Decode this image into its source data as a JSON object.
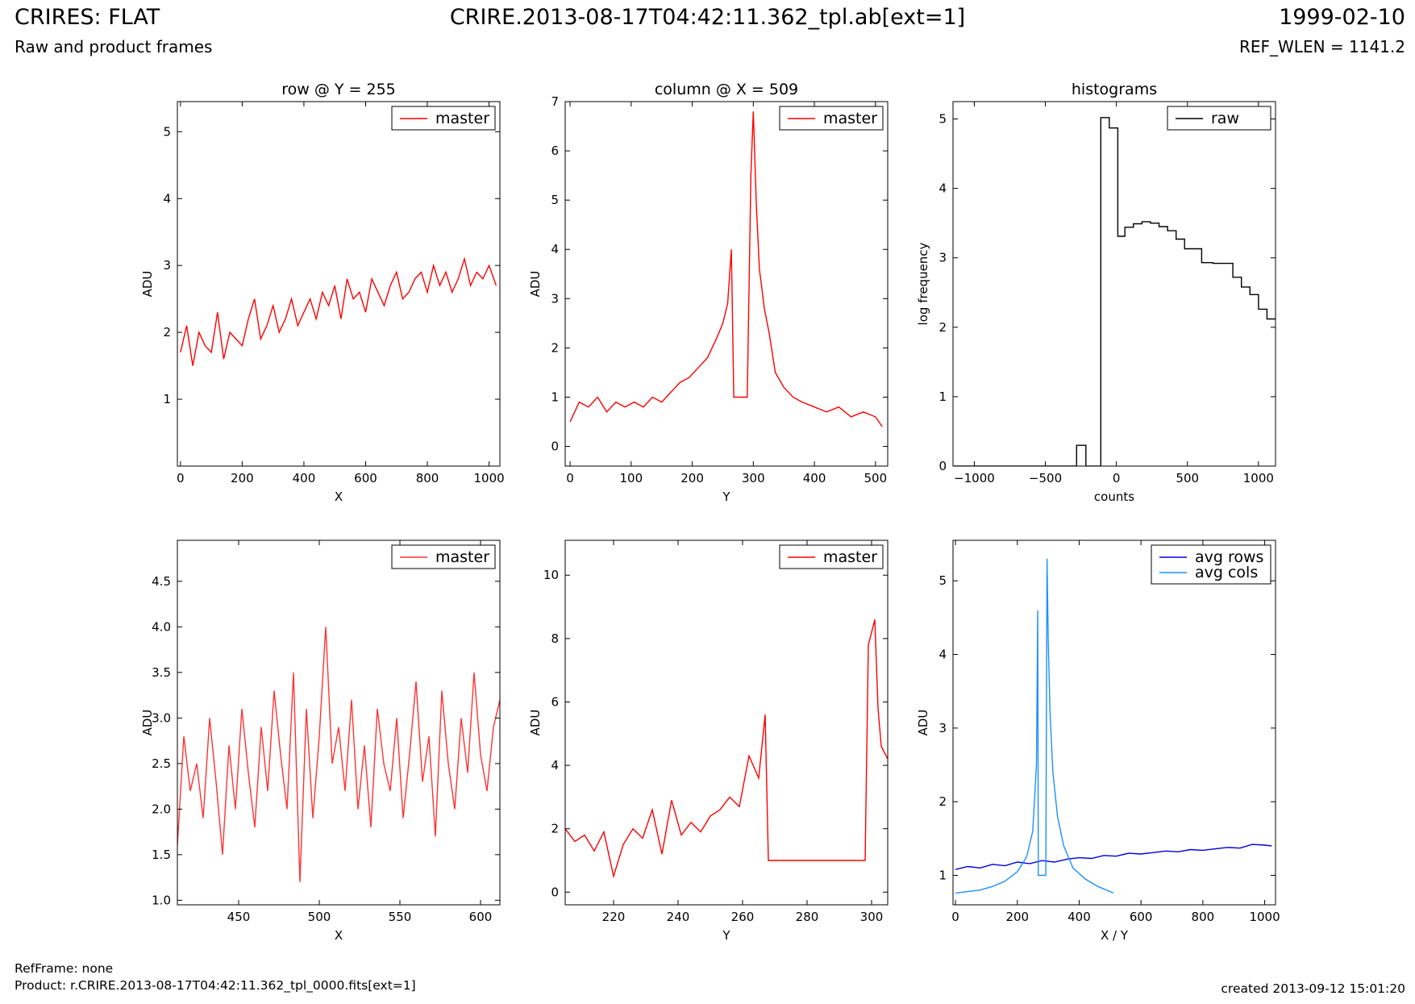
{
  "header": {
    "title": "CRIRES: FLAT",
    "subtitle": "Raw and product frames",
    "file": "CRIRE.2013-08-17T04:42:11.362_tpl.ab[ext=1]",
    "date": "1999-02-10",
    "ref_wlen": "REF_WLEN = 1141.2"
  },
  "footer": {
    "ref_frame": "RefFrame: none",
    "product": "Product: r.CRIRE.2013-08-17T04:42:11.362_tpl_0000.fits[ext=1]",
    "created": "created 2013-09-12 15:01:20"
  },
  "chart_data": [
    {
      "type": "line",
      "title": "row @ Y = 255",
      "xlabel": "X",
      "ylabel": "ADU",
      "xlim": [
        -10,
        1035
      ],
      "ylim": [
        0.0,
        5.45
      ],
      "xticks": [
        0,
        200,
        400,
        600,
        800,
        1000
      ],
      "yticks": [
        1,
        2,
        3,
        4,
        5
      ],
      "legend": "top-right",
      "series": [
        {
          "name": "master",
          "color": "#ff0000",
          "x": [
            0,
            20,
            40,
            60,
            80,
            100,
            120,
            140,
            160,
            180,
            200,
            220,
            240,
            260,
            280,
            300,
            320,
            340,
            360,
            380,
            400,
            420,
            440,
            460,
            480,
            500,
            520,
            540,
            560,
            580,
            600,
            620,
            640,
            660,
            680,
            700,
            720,
            740,
            760,
            780,
            800,
            820,
            840,
            860,
            880,
            900,
            920,
            940,
            960,
            980,
            1000,
            1023
          ],
          "y": [
            1.7,
            2.1,
            1.5,
            2.0,
            1.8,
            1.7,
            2.3,
            1.6,
            2.0,
            1.9,
            1.8,
            2.2,
            2.5,
            1.9,
            2.1,
            2.4,
            2.0,
            2.2,
            2.5,
            2.1,
            2.3,
            2.5,
            2.2,
            2.6,
            2.4,
            2.7,
            2.2,
            2.8,
            2.5,
            2.6,
            2.3,
            2.8,
            2.6,
            2.4,
            2.7,
            2.9,
            2.5,
            2.6,
            2.8,
            2.9,
            2.6,
            3.0,
            2.7,
            2.9,
            2.6,
            2.8,
            3.1,
            2.7,
            2.9,
            2.8,
            3.0,
            2.7
          ]
        }
      ]
    },
    {
      "type": "line",
      "title": "column @ X = 509",
      "xlabel": "Y",
      "ylabel": "ADU",
      "xlim": [
        -8,
        520
      ],
      "ylim": [
        -0.4,
        7.0
      ],
      "xticks": [
        0,
        100,
        200,
        300,
        400,
        500
      ],
      "yticks": [
        0,
        1,
        2,
        3,
        4,
        5,
        6,
        7
      ],
      "legend": "top-right",
      "series": [
        {
          "name": "master",
          "color": "#ff0000",
          "x": [
            0,
            15,
            30,
            45,
            60,
            75,
            90,
            105,
            120,
            135,
            150,
            165,
            180,
            195,
            210,
            225,
            240,
            250,
            258,
            264,
            268,
            290,
            296,
            300,
            305,
            310,
            318,
            326,
            336,
            350,
            365,
            380,
            400,
            420,
            440,
            460,
            480,
            500,
            511
          ],
          "y": [
            0.5,
            0.9,
            0.8,
            1.0,
            0.7,
            0.9,
            0.8,
            0.9,
            0.8,
            1.0,
            0.9,
            1.1,
            1.3,
            1.4,
            1.6,
            1.8,
            2.2,
            2.5,
            2.9,
            4.0,
            1.0,
            1.0,
            5.5,
            6.8,
            4.9,
            3.6,
            2.8,
            2.3,
            1.5,
            1.2,
            1.0,
            0.9,
            0.8,
            0.7,
            0.8,
            0.6,
            0.7,
            0.6,
            0.4
          ]
        }
      ]
    },
    {
      "type": "line",
      "title": "histograms",
      "xlabel": "counts",
      "ylabel": "log frequency",
      "xlim": [
        -1150,
        1120
      ],
      "ylim": [
        0,
        5.25
      ],
      "xticks": [
        -1000,
        -500,
        0,
        500,
        1000
      ],
      "yticks": [
        0,
        1,
        2,
        3,
        4,
        5
      ],
      "legend": "top-right",
      "series": [
        {
          "name": "raw",
          "color": "#000000",
          "x": [
            -1150,
            -280,
            -280,
            -215,
            -215,
            -110,
            -110,
            -50,
            -50,
            10,
            10,
            60,
            60,
            120,
            120,
            180,
            180,
            240,
            240,
            300,
            300,
            360,
            360,
            420,
            420,
            480,
            480,
            600,
            600,
            680,
            680,
            820,
            820,
            880,
            880,
            940,
            940,
            1000,
            1000,
            1060,
            1060,
            1120
          ],
          "y": [
            0,
            0,
            0.3,
            0.3,
            0,
            0,
            5.02,
            5.02,
            4.87,
            4.87,
            3.31,
            3.31,
            3.44,
            3.44,
            3.49,
            3.49,
            3.52,
            3.52,
            3.5,
            3.5,
            3.45,
            3.45,
            3.39,
            3.39,
            3.27,
            3.27,
            3.13,
            3.13,
            2.93,
            2.93,
            2.92,
            2.92,
            2.72,
            2.72,
            2.58,
            2.58,
            2.47,
            2.47,
            2.26,
            2.26,
            2.12,
            2.12
          ]
        }
      ]
    },
    {
      "type": "line",
      "title": "",
      "xlabel": "X",
      "ylabel": "ADU",
      "xlim": [
        412,
        612
      ],
      "ylim": [
        0.95,
        4.95
      ],
      "xticks": [
        450,
        500,
        550,
        600
      ],
      "yticks": [
        1.0,
        1.5,
        2.0,
        2.5,
        3.0,
        3.5,
        4.0,
        4.5
      ],
      "legend": "top-right",
      "series": [
        {
          "name": "master",
          "color": "#ff3333",
          "x": [
            412,
            416,
            420,
            424,
            428,
            432,
            436,
            440,
            444,
            448,
            452,
            456,
            460,
            464,
            468,
            472,
            476,
            480,
            484,
            488,
            492,
            496,
            500,
            504,
            508,
            512,
            516,
            520,
            524,
            528,
            532,
            536,
            540,
            544,
            548,
            552,
            556,
            560,
            564,
            568,
            572,
            576,
            580,
            584,
            588,
            592,
            596,
            600,
            604,
            608,
            612
          ],
          "y": [
            1.6,
            2.8,
            2.2,
            2.5,
            1.9,
            3.0,
            2.3,
            1.5,
            2.7,
            2.0,
            3.1,
            2.4,
            1.8,
            2.9,
            2.2,
            3.3,
            2.6,
            2.0,
            3.5,
            1.2,
            3.1,
            1.9,
            2.8,
            4.0,
            2.5,
            2.9,
            2.2,
            3.2,
            2.0,
            2.7,
            1.8,
            3.1,
            2.5,
            2.2,
            3.0,
            1.9,
            2.6,
            3.4,
            2.3,
            2.8,
            1.7,
            3.3,
            2.5,
            2.0,
            3.0,
            2.4,
            3.5,
            2.6,
            2.2,
            2.9,
            3.2
          ]
        }
      ]
    },
    {
      "type": "line",
      "title": "",
      "xlabel": "Y",
      "ylabel": "ADU",
      "xlim": [
        205,
        305
      ],
      "ylim": [
        -0.4,
        11.1
      ],
      "xticks": [
        220,
        240,
        260,
        280,
        300
      ],
      "yticks": [
        0,
        2,
        4,
        6,
        8,
        10
      ],
      "legend": "top-right",
      "series": [
        {
          "name": "master",
          "color": "#ff0000",
          "x": [
            205,
            208,
            211,
            214,
            217,
            220,
            223,
            226,
            229,
            232,
            235,
            238,
            241,
            244,
            247,
            250,
            253,
            256,
            259,
            262,
            265,
            267,
            268,
            298,
            299,
            301,
            302,
            303,
            305
          ],
          "y": [
            2.0,
            1.6,
            1.8,
            1.3,
            1.9,
            0.5,
            1.5,
            2.0,
            1.7,
            2.6,
            1.2,
            2.9,
            1.8,
            2.2,
            1.9,
            2.4,
            2.6,
            3.0,
            2.7,
            4.3,
            3.6,
            5.6,
            1.0,
            1.0,
            7.8,
            8.6,
            5.8,
            4.6,
            4.2
          ]
        }
      ]
    },
    {
      "type": "line",
      "title": "",
      "xlabel": "X / Y",
      "ylabel": "ADU",
      "xlim": [
        -8,
        1035
      ],
      "ylim": [
        0.6,
        5.55
      ],
      "xticks": [
        0,
        200,
        400,
        600,
        800,
        1000
      ],
      "yticks": [
        1,
        2,
        3,
        4,
        5
      ],
      "legend": "top-right",
      "series": [
        {
          "name": "avg rows",
          "color": "#0000dd",
          "x": [
            0,
            40,
            80,
            120,
            160,
            200,
            240,
            280,
            320,
            360,
            400,
            440,
            480,
            520,
            560,
            600,
            640,
            680,
            720,
            760,
            800,
            840,
            880,
            920,
            960,
            1000,
            1023
          ],
          "y": [
            1.08,
            1.12,
            1.1,
            1.15,
            1.13,
            1.18,
            1.16,
            1.2,
            1.18,
            1.22,
            1.24,
            1.23,
            1.27,
            1.26,
            1.3,
            1.29,
            1.31,
            1.33,
            1.32,
            1.35,
            1.34,
            1.36,
            1.38,
            1.37,
            1.42,
            1.41,
            1.4
          ]
        },
        {
          "name": "avg cols",
          "color": "#1e8fff",
          "x": [
            0,
            40,
            80,
            120,
            160,
            200,
            230,
            250,
            262,
            266,
            268,
            272,
            292,
            296,
            300,
            306,
            315,
            330,
            350,
            380,
            420,
            460,
            511
          ],
          "y": [
            0.76,
            0.78,
            0.8,
            0.85,
            0.92,
            1.05,
            1.25,
            1.6,
            2.5,
            4.6,
            1.0,
            1.0,
            1.0,
            5.3,
            4.2,
            3.2,
            2.4,
            1.8,
            1.4,
            1.1,
            0.95,
            0.85,
            0.76
          ]
        }
      ]
    }
  ]
}
